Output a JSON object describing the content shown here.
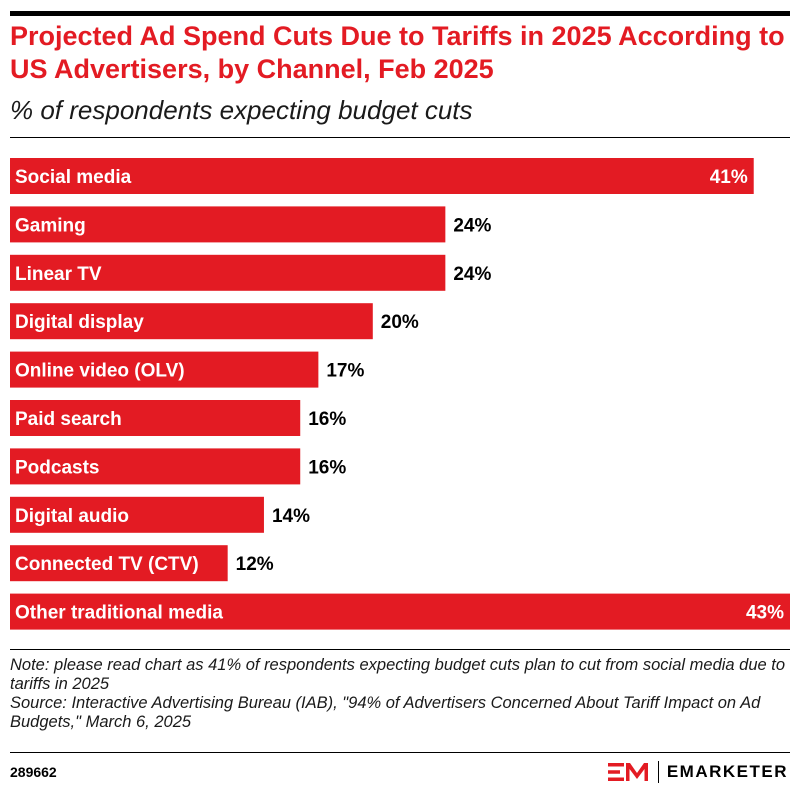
{
  "header": {
    "title": "Projected Ad Spend Cuts Due to Tariffs in 2025 According to US Advertisers, by Channel, Feb 2025",
    "subtitle": "% of respondents expecting budget cuts"
  },
  "chart_data": {
    "type": "bar",
    "orientation": "horizontal",
    "categories": [
      "Social media",
      "Gaming",
      "Linear TV",
      "Digital display",
      "Online video (OLV)",
      "Paid search",
      "Podcasts",
      "Digital audio",
      "Connected TV (CTV)",
      "Other traditional media"
    ],
    "values": [
      41,
      24,
      24,
      20,
      17,
      16,
      16,
      14,
      12,
      43
    ],
    "value_labels": [
      "41%",
      "24%",
      "24%",
      "20%",
      "17%",
      "16%",
      "16%",
      "14%",
      "12%",
      "43%"
    ],
    "unit": "%",
    "bar_color": "#e31b23",
    "grid": false,
    "legend": false
  },
  "footer": {
    "note": "Note: please read chart as 41% of respondents expecting budget cuts plan to cut from social media due to tariffs in 2025",
    "source": "Source: Interactive Advertising Bureau (IAB), \"94% of Advertisers Concerned About Tariff Impact on Ad Budgets,\" March 6, 2025",
    "chart_id": "289662",
    "brand": "EMARKETER",
    "brand_icon": "em-logo-icon",
    "brand_color": "#e31b23"
  }
}
